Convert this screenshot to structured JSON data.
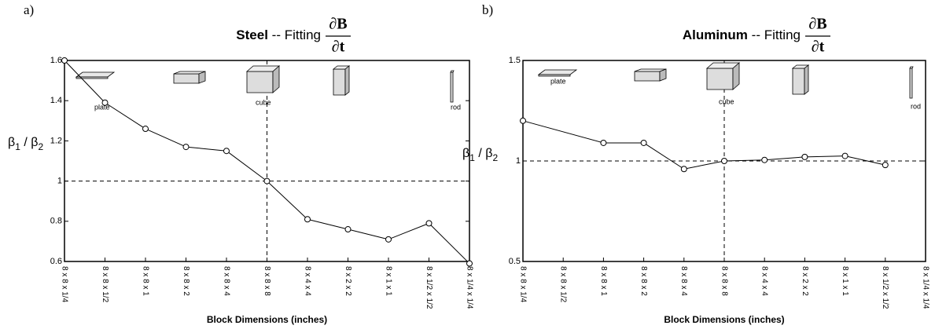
{
  "chart_data": [
    {
      "type": "line",
      "panel_label": "a)",
      "title_bold": "Steel",
      "title_rest": "-- Fitting",
      "title_fraction": {
        "numerator": "∂B",
        "denominator": "∂t"
      },
      "y_label": [
        "β",
        "1",
        " / β",
        "2"
      ],
      "x_label": "Block Dimensions (inches)",
      "categories": [
        "8 x 8 x 1/4",
        "8 x 8 x 1/2",
        "8 x 8 x 1",
        "8 x 8 x 2",
        "8 x 8 x 4",
        "8 x 8 x 8",
        "8 x 4 x 4",
        "8 x 2 x 2",
        "8 x 1 x 1",
        "8 x 1/2 x 1/2",
        "8 x 1/4 x 1/4"
      ],
      "values": [
        1.6,
        1.39,
        1.26,
        1.17,
        1.15,
        1.0,
        0.81,
        0.76,
        0.71,
        0.79,
        0.59
      ],
      "color": "#000000",
      "ylim": [
        0.6,
        1.6
      ],
      "yticks": [
        0.6,
        0.8,
        1,
        1.2,
        1.4,
        1.6
      ],
      "reference_y": 1,
      "reference_category_index": 5,
      "annotations": [
        "plate",
        "cube",
        "rod"
      ]
    },
    {
      "type": "line",
      "panel_label": "b)",
      "title_bold": "Aluminum",
      "title_rest": "-- Fitting",
      "title_fraction": {
        "numerator": "∂B",
        "denominator": "∂t"
      },
      "y_label": [
        "β",
        "1",
        " / β",
        "2"
      ],
      "x_label": "Block Dimensions (inches)",
      "categories": [
        "8 x 8 x 1/4",
        "8 x 8 x 1/2",
        "8 x 8 x 1",
        "8 x 8 x 2",
        "8 x 8 x 4",
        "8 x 8 x 8",
        "8 x 4 x 4",
        "8 x 2 x 2",
        "8 x 1 x 1",
        "8 x 1/2 x 1/2",
        "8 x 1/4 x 1/4"
      ],
      "values": [
        1.2,
        null,
        1.09,
        1.09,
        0.96,
        1.0,
        1.005,
        1.02,
        1.025,
        0.98,
        null
      ],
      "color": "#000000",
      "ylim": [
        0.5,
        1.5
      ],
      "yticks": [
        0.5,
        1,
        1.5
      ],
      "reference_y": 1,
      "reference_category_index": 5,
      "annotations": [
        "plate",
        "cube",
        "rod"
      ]
    }
  ]
}
